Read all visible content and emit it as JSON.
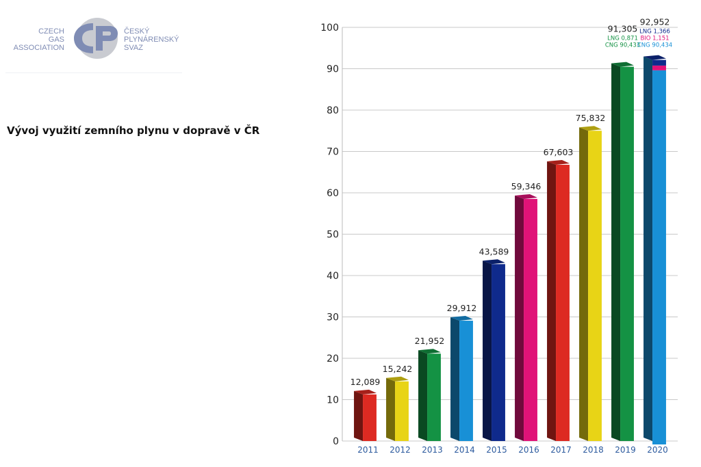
{
  "logo": {
    "left_lines": [
      "CZECH",
      "GAS",
      "ASSOCIATION"
    ],
    "right_lines": [
      "ČESKÝ",
      "PLYNÁRENSKÝ",
      "SVAZ"
    ],
    "mark_icon": "cps-logo-icon",
    "colors": {
      "text": "#7f8cb4",
      "mark": "#7f8cb4",
      "circle": "#c9cbd1"
    }
  },
  "headline": "Vývoj využití zemního plynu v dopravě v ČR",
  "chart_data": {
    "type": "bar",
    "title": "",
    "xlabel": "",
    "ylabel": "",
    "ylim": [
      0,
      100
    ],
    "yticks": [
      0,
      10,
      20,
      30,
      40,
      50,
      60,
      70,
      80,
      90,
      100
    ],
    "grid": true,
    "categories": [
      "2011",
      "2012",
      "2013",
      "2014",
      "2015",
      "2016",
      "2017",
      "2018",
      "2019",
      "2020"
    ],
    "values": [
      12.089,
      15.242,
      21.952,
      29.912,
      43.589,
      59.346,
      67.603,
      75.832,
      91.305,
      92.952
    ],
    "labels": [
      "12,089",
      "15,242",
      "21,952",
      "29,912",
      "43,589",
      "59,346",
      "67,603",
      "75,832",
      "91,305",
      "92,952"
    ],
    "colors": [
      "#dd2a22",
      "#e8d416",
      "#149244",
      "#1890d6",
      "#0f2a8c",
      "#e01378",
      "#dd2a22",
      "#e8d416",
      "#149244",
      "#1890d6"
    ],
    "breakdown": {
      "2019": [
        {
          "label": "LNG 0,871",
          "value": 0.871,
          "color": "#149244"
        },
        {
          "label": "CNG 90,433",
          "value": 90.433,
          "color": "#149244"
        }
      ],
      "2020": [
        {
          "label": "LNG 1,366",
          "value": 1.366,
          "color": "#0f2a8c"
        },
        {
          "label": "BIO 1,151",
          "value": 1.151,
          "color": "#e01378"
        },
        {
          "label": "CNG 90,434",
          "value": 90.434,
          "color": "#1890d6"
        }
      ]
    }
  }
}
